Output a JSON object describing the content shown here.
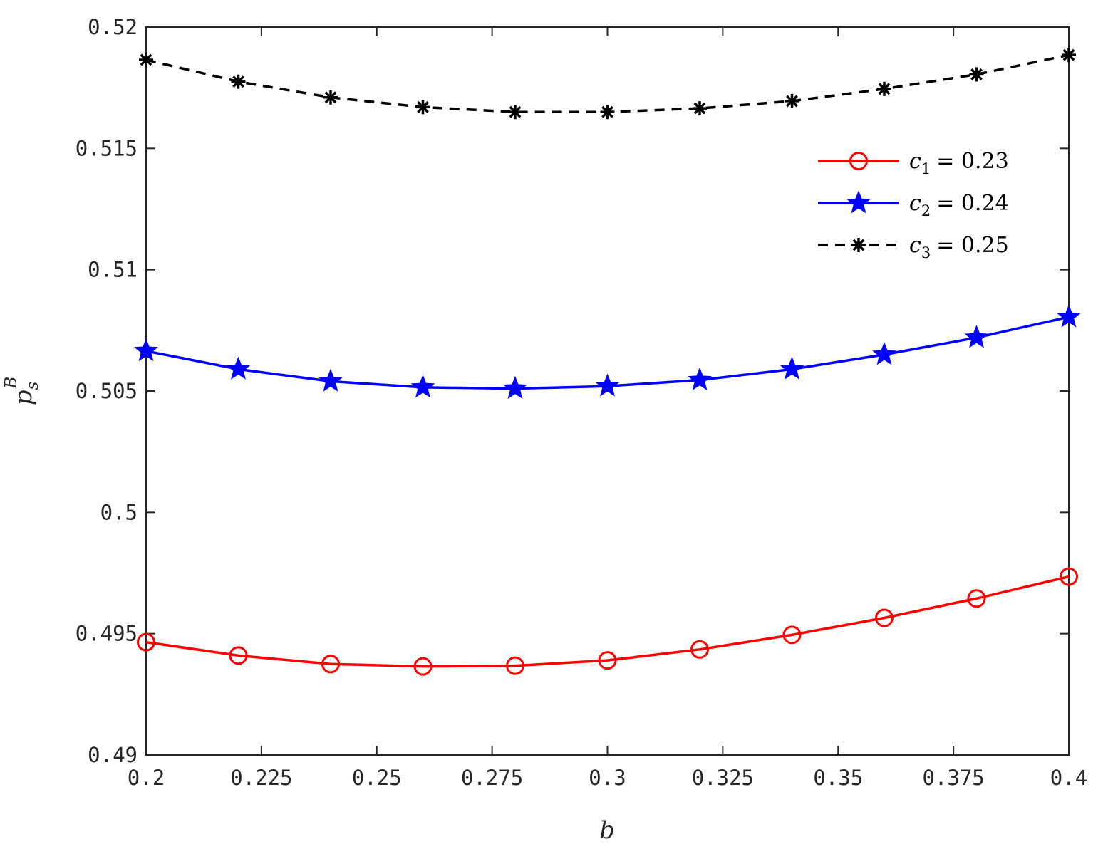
{
  "chart_data": {
    "type": "line",
    "xlabel": "b",
    "ylabel_base": "p",
    "ylabel_sub": "s",
    "ylabel_sup": "B",
    "xlim": [
      0.2,
      0.4
    ],
    "ylim": [
      0.49,
      0.52
    ],
    "xticks": [
      0.2,
      0.225,
      0.25,
      0.275,
      0.3,
      0.325,
      0.35,
      0.375,
      0.4
    ],
    "xtick_labels": [
      "0.2",
      "0.225",
      "0.25",
      "0.275",
      "0.3",
      "0.325",
      "0.35",
      "0.375",
      "0.4"
    ],
    "yticks": [
      0.49,
      0.495,
      0.5,
      0.505,
      0.51,
      0.515,
      0.52
    ],
    "ytick_labels": [
      "0.49",
      "0.495",
      "0.5",
      "0.505",
      "0.51",
      "0.515",
      "0.52"
    ],
    "grid": false,
    "legend_position": "top-right",
    "x": [
      0.2,
      0.22,
      0.24,
      0.26,
      0.28,
      0.3,
      0.32,
      0.34,
      0.36,
      0.38,
      0.4
    ],
    "series": [
      {
        "name": "c1 = 0.23",
        "legend_var": "c",
        "legend_sub": "1",
        "legend_rest": "= 0.23",
        "color": "#ff0000",
        "marker": "circle",
        "dash": "solid",
        "values": [
          0.49465,
          0.4941,
          0.49375,
          0.49365,
          0.49368,
          0.4939,
          0.49435,
          0.49495,
          0.49565,
          0.49645,
          0.49735
        ]
      },
      {
        "name": "c2 = 0.24",
        "legend_var": "c",
        "legend_sub": "2",
        "legend_rest": "= 0.24",
        "color": "#0000ff",
        "marker": "star",
        "dash": "solid",
        "values": [
          0.50665,
          0.5059,
          0.5054,
          0.50515,
          0.5051,
          0.5052,
          0.50545,
          0.5059,
          0.5065,
          0.5072,
          0.50805
        ]
      },
      {
        "name": "c3 = 0.25",
        "legend_var": "c",
        "legend_sub": "3",
        "legend_rest": "= 0.25",
        "color": "#000000",
        "marker": "asterisk",
        "dash": "dashed",
        "values": [
          0.51865,
          0.51775,
          0.5171,
          0.5167,
          0.5165,
          0.5165,
          0.51665,
          0.51695,
          0.51745,
          0.51805,
          0.51885
        ]
      }
    ]
  }
}
